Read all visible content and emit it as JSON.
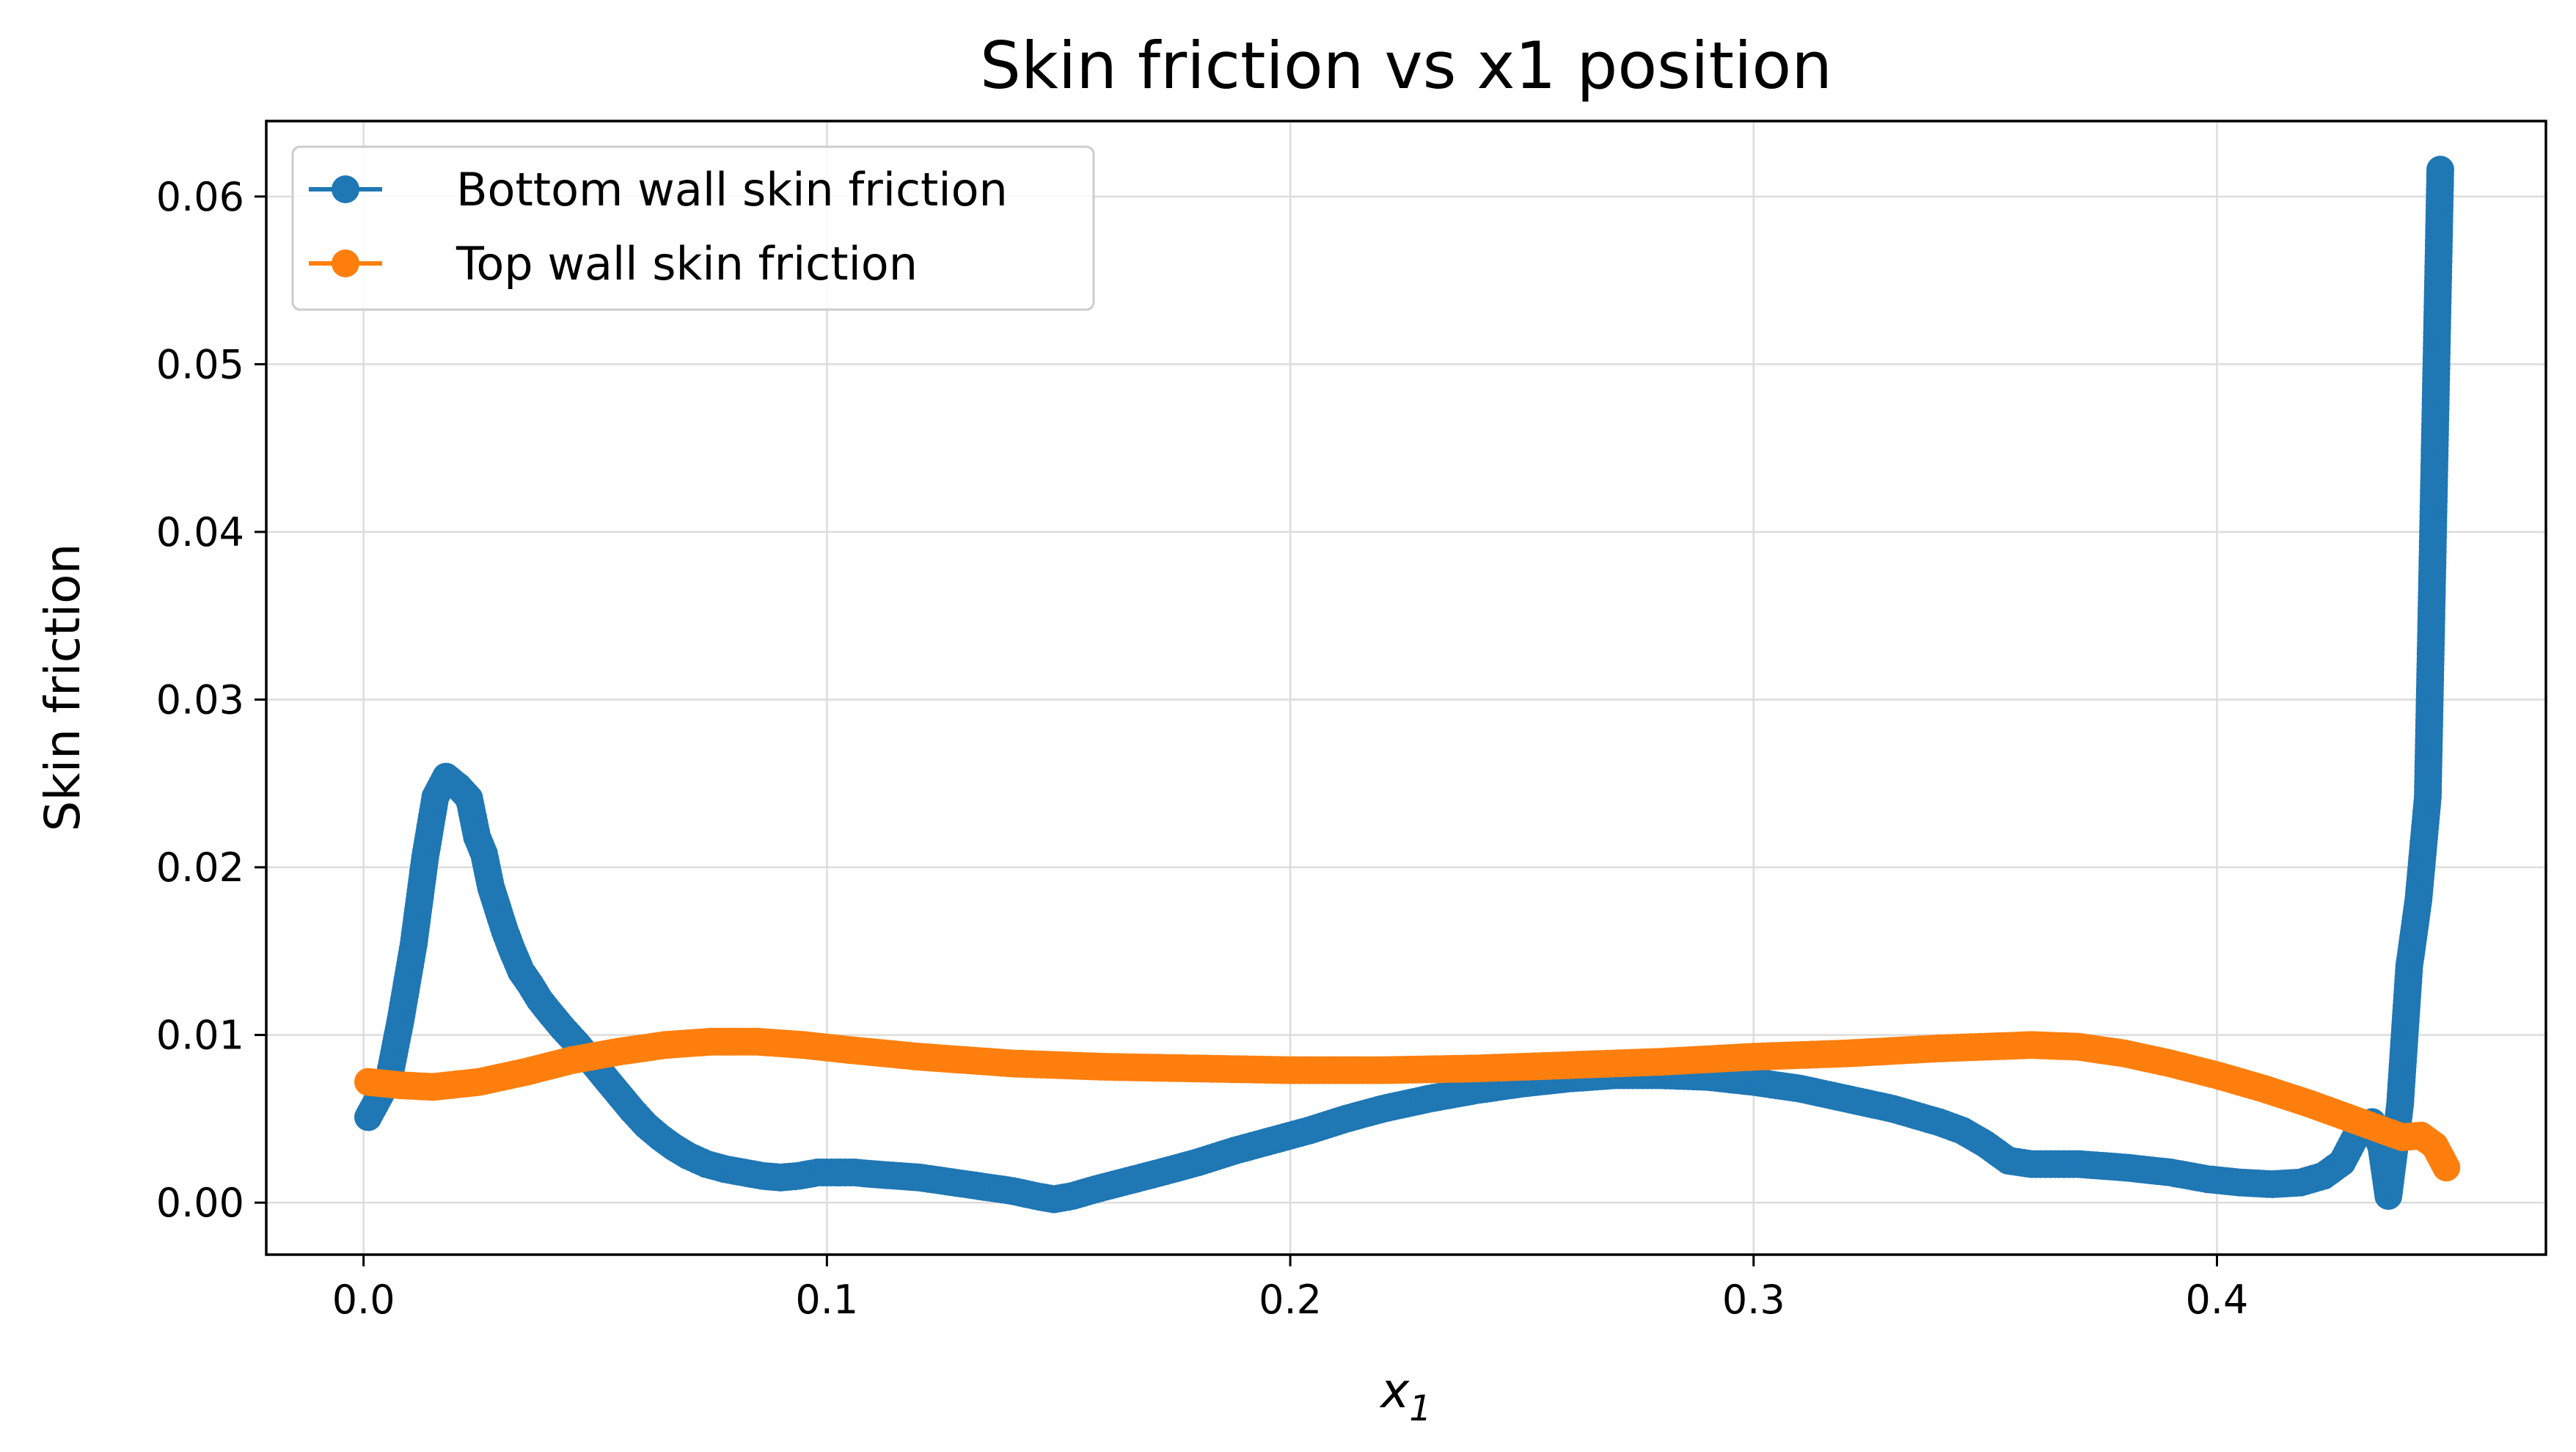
{
  "chart_data": {
    "type": "line",
    "title": "Skin friction vs x1 position",
    "xlabel": "x",
    "xlabel_subscript": "1",
    "ylabel": "Skin friction",
    "xlim": [
      -0.021,
      0.471
    ],
    "ylim": [
      -0.0031,
      0.0645
    ],
    "xticks": [
      0.0,
      0.1,
      0.2,
      0.3,
      0.4
    ],
    "xtick_labels": [
      "0.0",
      "0.1",
      "0.2",
      "0.3",
      "0.4"
    ],
    "yticks": [
      0.0,
      0.01,
      0.02,
      0.03,
      0.04,
      0.05,
      0.06
    ],
    "ytick_labels": [
      "0.00",
      "0.01",
      "0.02",
      "0.03",
      "0.04",
      "0.05",
      "0.06"
    ],
    "grid": true,
    "legend_position": "top-left",
    "series": [
      {
        "name": "Bottom wall skin friction",
        "color": "#1f77b4",
        "x": [
          0.001,
          0.0055,
          0.008,
          0.0108,
          0.0133,
          0.0155,
          0.0178,
          0.0205,
          0.0228,
          0.0245,
          0.026,
          0.0275,
          0.029,
          0.0305,
          0.032,
          0.034,
          0.036,
          0.038,
          0.04,
          0.043,
          0.046,
          0.049,
          0.052,
          0.055,
          0.058,
          0.061,
          0.064,
          0.067,
          0.07,
          0.074,
          0.078,
          0.082,
          0.086,
          0.09,
          0.094,
          0.098,
          0.102,
          0.106,
          0.11,
          0.115,
          0.12,
          0.125,
          0.13,
          0.135,
          0.14,
          0.145,
          0.149,
          0.153,
          0.158,
          0.165,
          0.172,
          0.18,
          0.188,
          0.196,
          0.204,
          0.212,
          0.22,
          0.23,
          0.24,
          0.25,
          0.26,
          0.27,
          0.28,
          0.29,
          0.3,
          0.31,
          0.32,
          0.33,
          0.34,
          0.345,
          0.35,
          0.355,
          0.36,
          0.37,
          0.38,
          0.39,
          0.398,
          0.405,
          0.412,
          0.418,
          0.423,
          0.427,
          0.431,
          0.4335,
          0.4355,
          0.437,
          0.4395,
          0.4415,
          0.4435,
          0.4455,
          0.4482
        ],
        "values": [
          0.0051,
          0.0074,
          0.0109,
          0.0154,
          0.0206,
          0.0242,
          0.0254,
          0.0248,
          0.0241,
          0.0218,
          0.0208,
          0.0188,
          0.0175,
          0.0162,
          0.0151,
          0.0138,
          0.013,
          0.0121,
          0.0114,
          0.0104,
          0.0095,
          0.0085,
          0.0075,
          0.0065,
          0.0055,
          0.0046,
          0.0039,
          0.0033,
          0.0028,
          0.0023,
          0.002,
          0.0018,
          0.0016,
          0.0015,
          0.0016,
          0.0018,
          0.0018,
          0.0018,
          0.0017,
          0.0016,
          0.0015,
          0.0013,
          0.0011,
          0.0009,
          0.0007,
          0.0004,
          0.0002,
          0.0004,
          0.0008,
          0.0013,
          0.0018,
          0.0024,
          0.0031,
          0.0037,
          0.0043,
          0.005,
          0.0056,
          0.0062,
          0.0067,
          0.0071,
          0.0074,
          0.0076,
          0.0076,
          0.0075,
          0.0072,
          0.0068,
          0.0062,
          0.0056,
          0.0048,
          0.0043,
          0.0035,
          0.0025,
          0.0023,
          0.0023,
          0.0021,
          0.0018,
          0.0014,
          0.0012,
          0.0011,
          0.0012,
          0.0016,
          0.0024,
          0.0045,
          0.0048,
          0.0033,
          0.0004,
          0.0058,
          0.0141,
          0.0181,
          0.0242,
          0.0616
        ]
      },
      {
        "name": "Top wall skin friction",
        "color": "#ff7f0e",
        "x": [
          0.001,
          0.008,
          0.015,
          0.025,
          0.035,
          0.045,
          0.055,
          0.065,
          0.075,
          0.085,
          0.095,
          0.105,
          0.12,
          0.14,
          0.16,
          0.18,
          0.2,
          0.22,
          0.24,
          0.26,
          0.28,
          0.3,
          0.32,
          0.34,
          0.35,
          0.36,
          0.37,
          0.38,
          0.39,
          0.4,
          0.41,
          0.42,
          0.43,
          0.436,
          0.44,
          0.444,
          0.447,
          0.4495
        ],
        "values": [
          0.0072,
          0.007,
          0.0069,
          0.0072,
          0.0078,
          0.0085,
          0.009,
          0.0094,
          0.0096,
          0.0096,
          0.0094,
          0.0091,
          0.0087,
          0.0083,
          0.0081,
          0.008,
          0.0079,
          0.0079,
          0.008,
          0.0082,
          0.0084,
          0.0087,
          0.0089,
          0.0092,
          0.0093,
          0.0094,
          0.0093,
          0.0089,
          0.0083,
          0.0076,
          0.0068,
          0.0059,
          0.0049,
          0.0043,
          0.0039,
          0.004,
          0.0034,
          0.0021
        ]
      }
    ]
  }
}
